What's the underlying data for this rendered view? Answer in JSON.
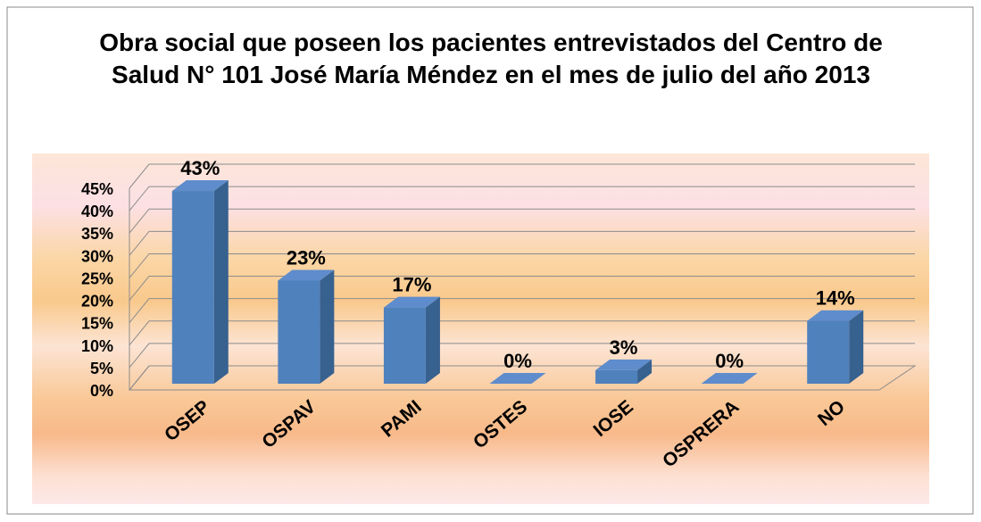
{
  "chart_data": {
    "type": "bar",
    "title": "Obra social que poseen los pacientes entrevistados del Centro de Salud N° 101 José María Méndez en el mes de julio del año 2013",
    "categories": [
      "OSEP",
      "OSPAV",
      "PAMI",
      "OSTES",
      "IOSE",
      "OSPRERA",
      "NO"
    ],
    "values": [
      43,
      23,
      17,
      0,
      3,
      0,
      14
    ],
    "value_labels": [
      "43%",
      "23%",
      "17%",
      "0%",
      "3%",
      "0%",
      "14%"
    ],
    "color": "#4f81bd",
    "ylim": [
      0,
      45
    ],
    "yticks": [
      {
        "value": 0,
        "label": "0%"
      },
      {
        "value": 5,
        "label": "5%"
      },
      {
        "value": 10,
        "label": "10%"
      },
      {
        "value": 15,
        "label": "15%"
      },
      {
        "value": 20,
        "label": "20%"
      },
      {
        "value": 25,
        "label": "25%"
      },
      {
        "value": 30,
        "label": "30%"
      },
      {
        "value": 35,
        "label": "35%"
      },
      {
        "value": 40,
        "label": "40%"
      },
      {
        "value": 45,
        "label": "45%"
      }
    ],
    "grid": true
  }
}
